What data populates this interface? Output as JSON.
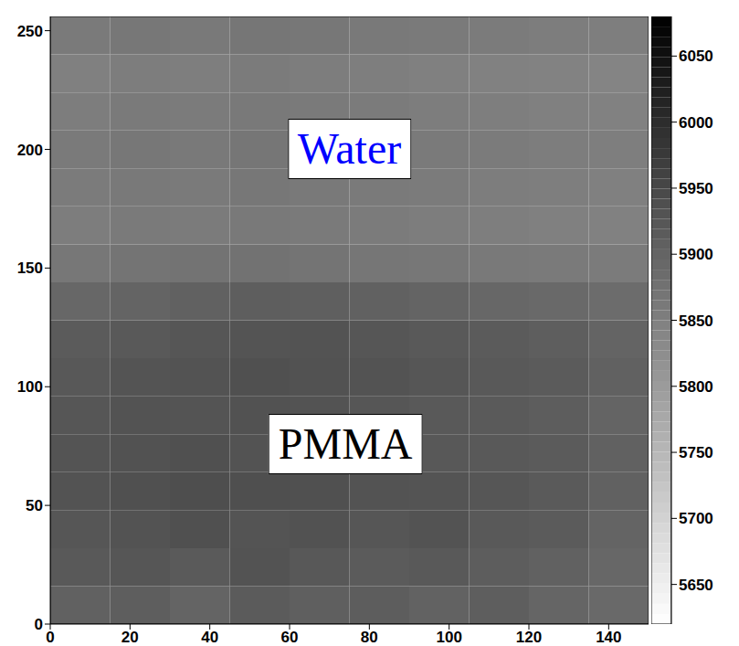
{
  "chart_data": {
    "type": "heatmap",
    "xlim": [
      0,
      150
    ],
    "ylim": [
      0,
      256
    ],
    "xticks": [
      0,
      20,
      40,
      60,
      80,
      100,
      120,
      140
    ],
    "yticks": [
      0,
      50,
      100,
      150,
      200,
      250
    ],
    "x": [
      0,
      15,
      30,
      45,
      60,
      75,
      90,
      105,
      120,
      135,
      150
    ],
    "y": [
      0,
      16,
      32,
      48,
      64,
      80,
      96,
      112,
      128,
      144,
      160,
      176,
      192,
      208,
      224,
      240,
      256
    ],
    "cells": [
      [
        5905,
        5910,
        5900,
        5915,
        5908,
        5912,
        5903,
        5910,
        5898,
        5890
      ],
      [
        5920,
        5925,
        5918,
        5930,
        5922,
        5915,
        5920,
        5912,
        5905,
        5895
      ],
      [
        5925,
        5930,
        5935,
        5928,
        5932,
        5925,
        5930,
        5920,
        5915,
        5900
      ],
      [
        5930,
        5935,
        5940,
        5938,
        5935,
        5930,
        5928,
        5925,
        5918,
        5905
      ],
      [
        5928,
        5932,
        5935,
        5930,
        5925,
        5928,
        5922,
        5920,
        5915,
        5905
      ],
      [
        5925,
        5930,
        5928,
        5932,
        5930,
        5925,
        5920,
        5918,
        5912,
        5900
      ],
      [
        5922,
        5928,
        5930,
        5935,
        5932,
        5930,
        5925,
        5920,
        5915,
        5905
      ],
      [
        5915,
        5920,
        5925,
        5928,
        5930,
        5925,
        5920,
        5915,
        5910,
        5900
      ],
      [
        5895,
        5900,
        5905,
        5910,
        5908,
        5905,
        5900,
        5895,
        5890,
        5885
      ],
      [
        5865,
        5870,
        5872,
        5875,
        5870,
        5868,
        5865,
        5862,
        5860,
        5858
      ],
      [
        5855,
        5860,
        5858,
        5862,
        5860,
        5858,
        5855,
        5852,
        5850,
        5848
      ],
      [
        5858,
        5862,
        5860,
        5865,
        5862,
        5860,
        5858,
        5855,
        5852,
        5850
      ],
      [
        5860,
        5865,
        5862,
        5868,
        5865,
        5862,
        5860,
        5858,
        5855,
        5852
      ],
      [
        5855,
        5860,
        5858,
        5862,
        5860,
        5858,
        5855,
        5852,
        5850,
        5848
      ],
      [
        5850,
        5855,
        5852,
        5858,
        5855,
        5852,
        5850,
        5848,
        5845,
        5842
      ],
      [
        5860,
        5865,
        5862,
        5868,
        5865,
        5862,
        5860,
        5858,
        5855,
        5852
      ]
    ],
    "colorbar": {
      "range": [
        5620,
        6080
      ],
      "ticks": [
        5650,
        5700,
        5750,
        5800,
        5850,
        5900,
        5950,
        6000,
        6050
      ]
    },
    "colors": [
      "#ffffff",
      "#000000"
    ],
    "annotations": [
      {
        "text": "Water",
        "x": 75,
        "y": 200,
        "color": "#0000ff"
      },
      {
        "text": "PMMA",
        "x": 74,
        "y": 76,
        "color": "#000000"
      }
    ]
  }
}
